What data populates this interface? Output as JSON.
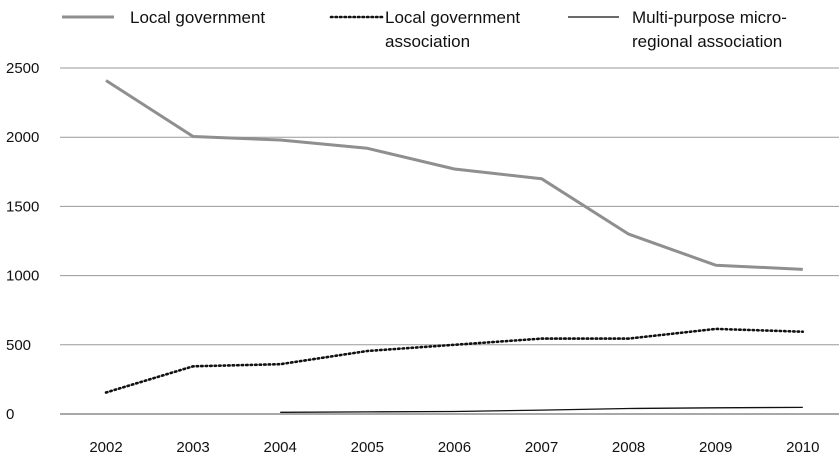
{
  "chart_data": {
    "type": "line",
    "title": "",
    "xlabel": "",
    "ylabel": "",
    "categories": [
      "2002",
      "2003",
      "2004",
      "2005",
      "2006",
      "2007",
      "2008",
      "2009",
      "2010"
    ],
    "ylim": [
      0,
      2500
    ],
    "yticks": [
      0,
      500,
      1000,
      1500,
      2000,
      2500
    ],
    "grid": true,
    "legend_position": "top",
    "series": [
      {
        "name": "Local government",
        "style": "solid-thick",
        "color": "#8f8f8f",
        "values": [
          2410,
          2005,
          1980,
          1920,
          1770,
          1700,
          1300,
          1075,
          1045
        ]
      },
      {
        "name": "Local government association",
        "style": "dotted",
        "color": "#111111",
        "values": [
          155,
          345,
          360,
          455,
          500,
          545,
          545,
          615,
          595
        ]
      },
      {
        "name": "Multi-purpose micro-regional association",
        "style": "solid-thin",
        "color": "#111111",
        "values": [
          null,
          null,
          12,
          15,
          18,
          28,
          40,
          45,
          48
        ]
      }
    ]
  }
}
